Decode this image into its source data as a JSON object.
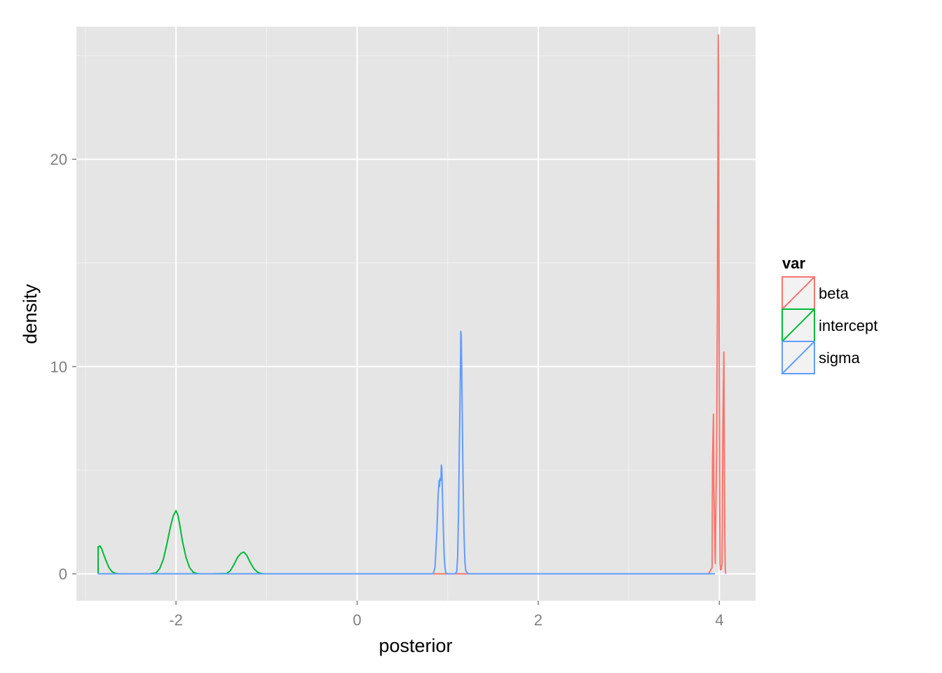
{
  "chart_data": {
    "type": "line",
    "title": "",
    "xlabel": "posterior",
    "ylabel": "density",
    "xlim": [
      -3.1,
      4.4
    ],
    "ylim": [
      -1.3,
      26.4
    ],
    "x_ticks": [
      -2,
      0,
      2,
      4
    ],
    "x_tick_labels": [
      "-2",
      "0",
      "2",
      "4"
    ],
    "y_ticks": [
      0,
      10,
      20
    ],
    "y_tick_labels": [
      "0",
      "10",
      "20"
    ],
    "grid": true,
    "background": "#e5e5e5",
    "legend": {
      "title": "var",
      "position": "right"
    },
    "series": [
      {
        "name": "beta",
        "color": "#f8766d",
        "x": [
          -2.86,
          3.88,
          3.92,
          3.925,
          3.935,
          3.94,
          3.955,
          3.96,
          3.97,
          3.978,
          3.984,
          3.988,
          3.992,
          3.996,
          4.0,
          4.004,
          4.008,
          4.012,
          4.02,
          4.03,
          4.04,
          4.05,
          4.055,
          4.06,
          4.065,
          4.07
        ],
        "y": [
          0,
          0,
          0.3,
          5.5,
          7.7,
          4.0,
          0.5,
          2.5,
          6.0,
          12.2,
          20.0,
          26.0,
          24.5,
          15.2,
          8.5,
          3.5,
          0.5,
          0.2,
          0.2,
          0.5,
          7.3,
          10.7,
          6.0,
          2.0,
          0.2,
          0
        ]
      },
      {
        "name": "intercept",
        "color": "#00ba38",
        "x": [
          -2.86,
          -2.86,
          -2.84,
          -2.82,
          -2.8,
          -2.77,
          -2.74,
          -2.71,
          -2.68,
          -2.65,
          -2.6,
          -2.3,
          -2.22,
          -2.18,
          -2.14,
          -2.1,
          -2.06,
          -2.03,
          -2.0,
          -1.98,
          -1.96,
          -1.93,
          -1.89,
          -1.85,
          -1.81,
          -1.77,
          -1.73,
          -1.6,
          -1.44,
          -1.4,
          -1.36,
          -1.32,
          -1.28,
          -1.25,
          -1.22,
          -1.18,
          -1.14,
          -1.1,
          -1.06,
          -1.02,
          -1.0
        ],
        "y": [
          0,
          1.3,
          1.35,
          1.2,
          0.95,
          0.6,
          0.3,
          0.12,
          0.04,
          0.01,
          0,
          0,
          0.05,
          0.25,
          0.7,
          1.45,
          2.3,
          2.8,
          3.05,
          2.85,
          2.4,
          1.6,
          0.8,
          0.3,
          0.08,
          0.02,
          0,
          0,
          0.02,
          0.15,
          0.45,
          0.8,
          1.0,
          1.05,
          0.9,
          0.55,
          0.25,
          0.08,
          0.02,
          0,
          0
        ]
      },
      {
        "name": "sigma",
        "color": "#619cff",
        "x": [
          -2.86,
          0.84,
          0.86,
          0.88,
          0.895,
          0.905,
          0.91,
          0.915,
          0.925,
          0.93,
          0.935,
          0.94,
          0.95,
          0.96,
          0.97,
          0.98,
          1.0,
          1.08,
          1.1,
          1.11,
          1.12,
          1.13,
          1.14,
          1.145,
          1.15,
          1.155,
          1.16,
          1.17,
          1.18,
          1.19,
          1.2,
          1.22,
          1.25,
          3.95
        ],
        "y": [
          0,
          0,
          0.3,
          2.0,
          3.8,
          4.5,
          4.2,
          4.6,
          4.5,
          5.25,
          5.1,
          4.2,
          2.5,
          1.0,
          0.3,
          0.05,
          0,
          0,
          0.1,
          0.8,
          3.0,
          6.5,
          9.5,
          11.7,
          11.5,
          10.0,
          8.0,
          4.5,
          2.0,
          0.6,
          0.15,
          0.02,
          0,
          0
        ]
      }
    ]
  }
}
